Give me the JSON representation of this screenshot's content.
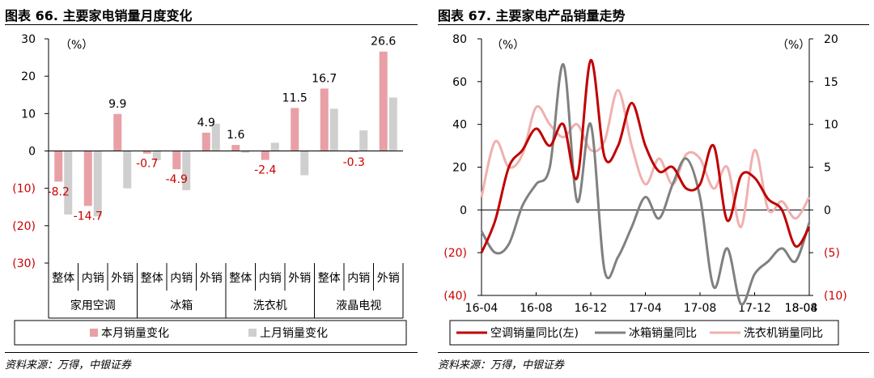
{
  "left": {
    "title": "图表 66. 主要家电销量月度变化",
    "source": "资料来源：万得，中银证券",
    "unit": "（%）",
    "legend": [
      "本月销量变化",
      "上月销量变化"
    ],
    "y_tick_labels": [
      "30",
      "20",
      "10",
      "0",
      "(10)",
      "(20)",
      "(30)"
    ],
    "colors": {
      "current": "#e8a0a6",
      "previous": "#cfcfcf",
      "negative_text": "#cc0000"
    }
  },
  "right": {
    "title": "图表 67. 主要家电产品销量走势",
    "source": "资料来源：万得，中银证券",
    "unit_left": "（%）",
    "unit_right": "（%）",
    "left_tick_labels": [
      "80",
      "60",
      "40",
      "20",
      "0",
      "(20)",
      "(40)"
    ],
    "right_tick_labels": [
      "20",
      "15",
      "10",
      "5",
      "0",
      "(5)",
      "(10)"
    ],
    "x_tick_labels": [
      "16-04",
      "16-08",
      "16-12",
      "17-04",
      "17-08",
      "17-12",
      "18-04",
      "18-08"
    ],
    "colors": {
      "ac": "#c00000",
      "fridge": "#808080",
      "washer": "#f0b0b0"
    }
  },
  "chart_data": [
    {
      "type": "bar",
      "title": "图表 66. 主要家电销量月度变化",
      "ylabel": "（%）",
      "ylim": [
        -30,
        30
      ],
      "groups": [
        "家用空调",
        "冰箱",
        "洗衣机",
        "液晶电视"
      ],
      "categories": [
        "整体",
        "内销",
        "外销",
        "整体",
        "内销",
        "外销",
        "整体",
        "内销",
        "外销",
        "整体",
        "内销",
        "外销"
      ],
      "series": [
        {
          "name": "本月销量变化",
          "values": [
            -8.2,
            -14.7,
            9.9,
            -0.7,
            -4.9,
            4.9,
            1.6,
            -2.4,
            11.5,
            16.7,
            -0.3,
            26.6
          ]
        },
        {
          "name": "上月销量变化",
          "values": [
            -17.0,
            -17.5,
            -10.0,
            -2.5,
            -10.5,
            7.3,
            -0.5,
            2.2,
            -6.5,
            11.3,
            5.5,
            14.3
          ]
        }
      ],
      "data_labels": [
        "-8.2",
        "-14.7",
        "9.9",
        "-0.7",
        "-4.9",
        "4.9",
        "1.6",
        "-2.4",
        "11.5",
        "16.7",
        "-0.3",
        "26.6"
      ],
      "legend": "bottom"
    },
    {
      "type": "line",
      "title": "图表 67. 主要家电产品销量走势",
      "x_start": "16-04",
      "x_end": "18-08",
      "x_ticks": [
        "16-04",
        "16-08",
        "16-12",
        "17-04",
        "17-08",
        "17-12",
        "18-04",
        "18-08"
      ],
      "ylim_left": [
        -40,
        80
      ],
      "ylim_right": [
        -10,
        20
      ],
      "series": [
        {
          "name": "空调销量同比(左)",
          "axis": "left",
          "values": [
            -20,
            -5,
            20,
            28,
            38,
            30,
            40,
            15,
            70,
            25,
            30,
            50,
            30,
            18,
            20,
            10,
            12,
            30,
            -5,
            16,
            15,
            5,
            0,
            -17,
            -8
          ]
        },
        {
          "name": "冰箱销量同比",
          "axis": "right",
          "values": [
            -2.5,
            -5,
            -4,
            0.5,
            3,
            5,
            17,
            1,
            10,
            -7,
            -5.5,
            -2,
            1.5,
            -1,
            3,
            6,
            1.5,
            -9,
            -4.5,
            -11,
            -7.5,
            -6,
            -4.5,
            -6,
            -1.5
          ]
        },
        {
          "name": "洗衣机销量同比",
          "axis": "right",
          "values": [
            1.5,
            8,
            5,
            6.5,
            12,
            10,
            8.5,
            10,
            7,
            8,
            14,
            7.5,
            3,
            6,
            3,
            6.5,
            6,
            2.5,
            5,
            -2,
            7,
            0,
            1,
            -1,
            1.5
          ]
        }
      ],
      "legend": "bottom"
    }
  ]
}
